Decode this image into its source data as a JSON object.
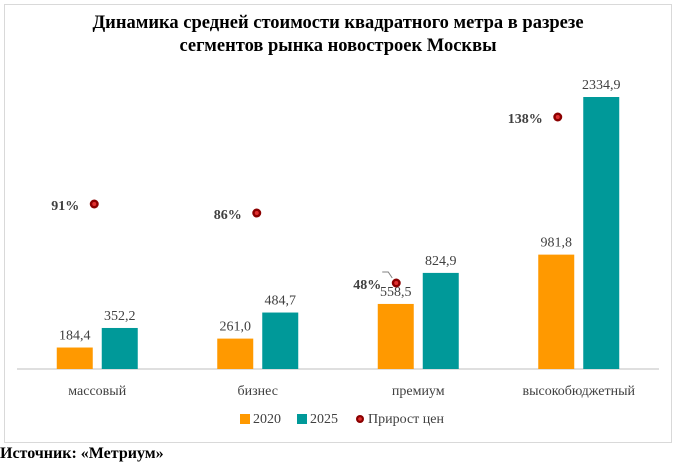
{
  "chart_data": {
    "type": "bar",
    "title_lines": [
      "Динамика средней стоимости квадратного метра в разрезе",
      "сегментов рынка новостроек Москвы"
    ],
    "categories": [
      "массовый",
      "бизнес",
      "премиум",
      "высокобюджетный"
    ],
    "series": [
      {
        "name": "2020",
        "color": "#ff9900",
        "values": [
          184.4,
          261.0,
          558.5,
          981.8
        ],
        "labels": [
          "184,4",
          "261,0",
          "558,5",
          "981,8"
        ]
      },
      {
        "name": "2025",
        "color": "#009999",
        "values": [
          352.2,
          484.7,
          824.9,
          2334.9
        ],
        "labels": [
          "352,2",
          "484,7",
          "824,9",
          "2334,9"
        ]
      }
    ],
    "growth": {
      "name": "Прирост цен",
      "color": "#c00000",
      "values": [
        91,
        86,
        48,
        138
      ],
      "labels": [
        "91%",
        "86%",
        "48%",
        "138%"
      ]
    },
    "ylim": [
      0,
      2500
    ],
    "xlabel": "",
    "ylabel": "",
    "grid": false,
    "legend": "bottom"
  },
  "source": "Источник: «Метриум»"
}
